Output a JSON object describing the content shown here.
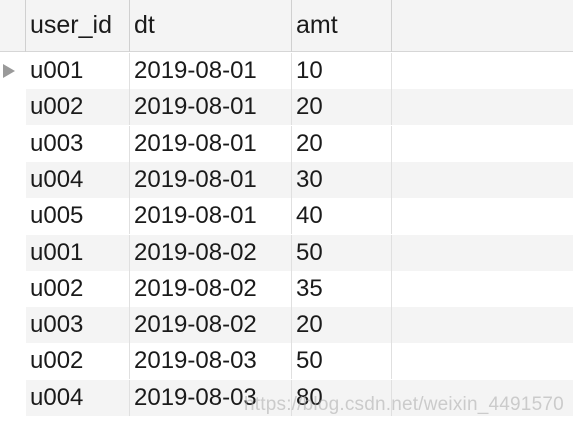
{
  "columns": [
    "user_id",
    "dt",
    "amt"
  ],
  "rows": [
    {
      "user_id": "u001",
      "dt": "2019-08-01",
      "amt": "10",
      "current": true
    },
    {
      "user_id": "u002",
      "dt": "2019-08-01",
      "amt": "20"
    },
    {
      "user_id": "u003",
      "dt": "2019-08-01",
      "amt": "20"
    },
    {
      "user_id": "u004",
      "dt": "2019-08-01",
      "amt": "30"
    },
    {
      "user_id": "u005",
      "dt": "2019-08-01",
      "amt": "40"
    },
    {
      "user_id": "u001",
      "dt": "2019-08-02",
      "amt": "50"
    },
    {
      "user_id": "u002",
      "dt": "2019-08-02",
      "amt": "35"
    },
    {
      "user_id": "u003",
      "dt": "2019-08-02",
      "amt": "20"
    },
    {
      "user_id": "u002",
      "dt": "2019-08-03",
      "amt": "50"
    },
    {
      "user_id": "u004",
      "dt": "2019-08-03",
      "amt": "80"
    }
  ],
  "watermark": "https://blog.csdn.net/weixin_4491570",
  "colors": {
    "header_bg": "#f4f4f4",
    "alt_row_bg": "#f4f4f4",
    "row_bg": "#ffffff",
    "current_row_marker": "#9a9a9a"
  },
  "icons": {
    "current_row_marker": "triangle-right-icon"
  }
}
